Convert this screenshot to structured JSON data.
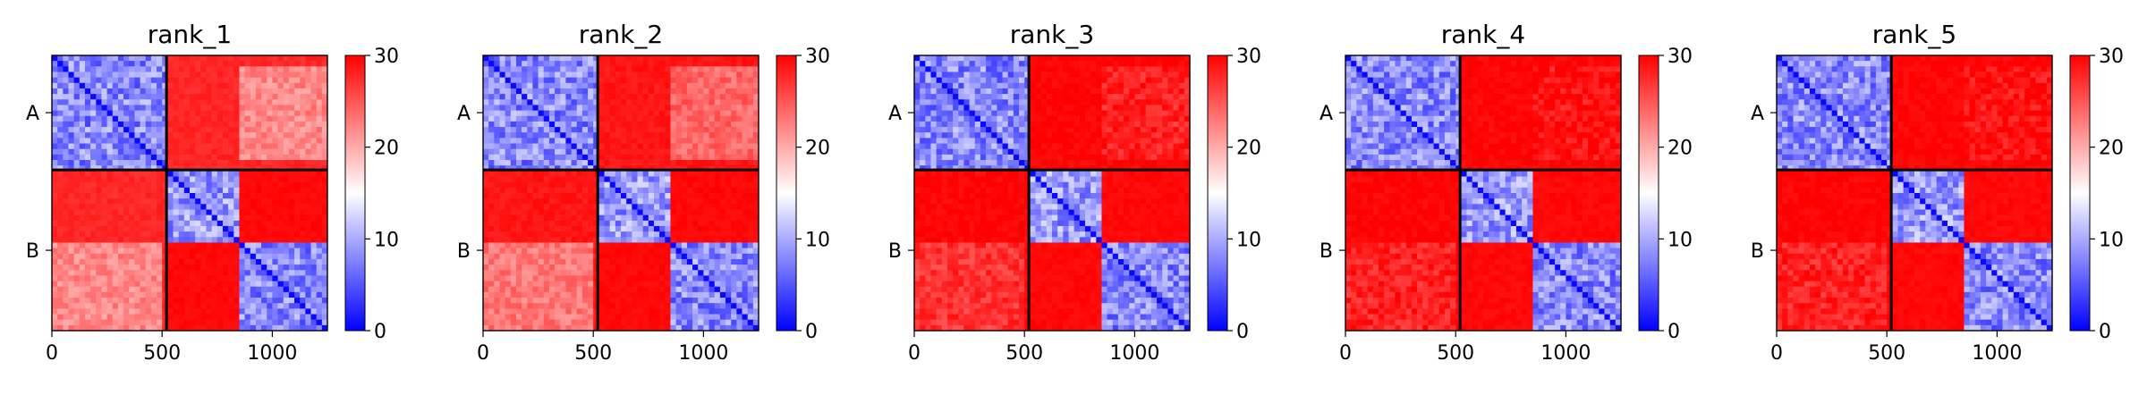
{
  "chart_data": [
    {
      "type": "heatmap",
      "title": "rank_1",
      "x_ticks": [
        0,
        500,
        1000
      ],
      "x_tick_labels": [
        "0",
        "500",
        "1000"
      ],
      "xlim": [
        0,
        1250
      ],
      "y_tick_labels": [
        "A",
        "B"
      ],
      "chain_boundary": 520,
      "colorbar": {
        "ticks": [
          0,
          10,
          20,
          30
        ],
        "tick_labels": [
          "0",
          "10",
          "20",
          "30"
        ],
        "range": [
          0,
          30
        ],
        "colormap": "bwr"
      },
      "block_values": {
        "A-A": 8,
        "B-B_upper": 9,
        "B-B_lower": 8,
        "A-B": 27,
        "B-A": 27,
        "A-B_near_B_lower": 22,
        "B-A_lower_left": 22
      },
      "grid": false
    },
    {
      "type": "heatmap",
      "title": "rank_2",
      "x_ticks": [
        0,
        500,
        1000
      ],
      "x_tick_labels": [
        "0",
        "500",
        "1000"
      ],
      "xlim": [
        0,
        1250
      ],
      "y_tick_labels": [
        "A",
        "B"
      ],
      "chain_boundary": 520,
      "colorbar": {
        "ticks": [
          0,
          10,
          20,
          30
        ],
        "tick_labels": [
          "0",
          "10",
          "20",
          "30"
        ],
        "range": [
          0,
          30
        ],
        "colormap": "bwr"
      },
      "block_values": {
        "A-A": 8,
        "B-B_upper": 9,
        "B-B_lower": 8,
        "A-B": 28,
        "B-A": 28,
        "A-B_near_B_lower": 24,
        "B-A_lower_left": 23
      },
      "grid": false
    },
    {
      "type": "heatmap",
      "title": "rank_3",
      "x_ticks": [
        0,
        500,
        1000
      ],
      "x_tick_labels": [
        "0",
        "500",
        "1000"
      ],
      "xlim": [
        0,
        1250
      ],
      "y_tick_labels": [
        "A",
        "B"
      ],
      "chain_boundary": 520,
      "colorbar": {
        "ticks": [
          0,
          10,
          20,
          30
        ],
        "tick_labels": [
          "0",
          "10",
          "20",
          "30"
        ],
        "range": [
          0,
          30
        ],
        "colormap": "bwr"
      },
      "block_values": {
        "A-A": 8,
        "B-B_upper": 9,
        "B-B_lower": 8,
        "A-B": 29,
        "B-A": 29,
        "A-B_near_B_lower": 28,
        "B-A_lower_left": 27
      },
      "grid": false
    },
    {
      "type": "heatmap",
      "title": "rank_4",
      "x_ticks": [
        0,
        500,
        1000
      ],
      "x_tick_labels": [
        "0",
        "500",
        "1000"
      ],
      "xlim": [
        0,
        1250
      ],
      "y_tick_labels": [
        "A",
        "B"
      ],
      "chain_boundary": 520,
      "colorbar": {
        "ticks": [
          0,
          10,
          20,
          30
        ],
        "tick_labels": [
          "0",
          "10",
          "20",
          "30"
        ],
        "range": [
          0,
          30
        ],
        "colormap": "bwr"
      },
      "block_values": {
        "A-A": 8,
        "B-B_upper": 9,
        "B-B_lower": 8,
        "A-B": 29,
        "B-A": 29,
        "A-B_near_B_lower": 29,
        "B-A_lower_left": 28
      },
      "grid": false
    },
    {
      "type": "heatmap",
      "title": "rank_5",
      "x_ticks": [
        0,
        500,
        1000
      ],
      "x_tick_labels": [
        "0",
        "500",
        "1000"
      ],
      "xlim": [
        0,
        1250
      ],
      "y_tick_labels": [
        "A",
        "B"
      ],
      "chain_boundary": 520,
      "colorbar": {
        "ticks": [
          0,
          10,
          20,
          30
        ],
        "tick_labels": [
          "0",
          "10",
          "20",
          "30"
        ],
        "range": [
          0,
          30
        ],
        "colormap": "bwr"
      },
      "block_values": {
        "A-A": 8,
        "B-B_upper": 9,
        "B-B_lower": 8,
        "A-B": 29,
        "B-A": 29,
        "A-B_near_B_lower": 29,
        "B-A_lower_left": 28
      },
      "grid": false
    }
  ]
}
